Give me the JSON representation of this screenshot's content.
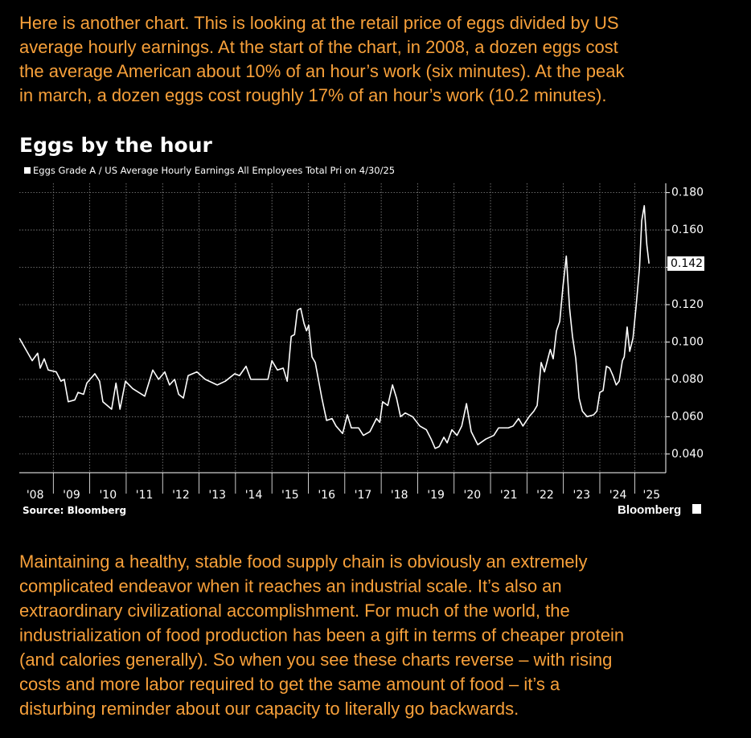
{
  "intro": [
    "Here is another chart. This is looking at the retail price of eggs divided by US",
    "average hourly earnings. At the start of the chart, in 2008, a dozen eggs cost",
    "the average American about 10% of an hour’s work (six minutes). At the peak",
    "in march, a dozen eggs cost roughly 17% of an hour’s work (10.2 minutes)."
  ],
  "chart_data": {
    "type": "line",
    "title": "Eggs by the hour",
    "source": "Source: Bloomberg",
    "brand": "Bloomberg",
    "last_label": "0.142",
    "x": [
      2008.07,
      2008.42,
      2008.57,
      2008.64,
      2008.75,
      2008.86,
      2009.08,
      2009.21,
      2009.3,
      2009.41,
      2009.59,
      2009.68,
      2009.83,
      2009.92,
      2010.14,
      2010.27,
      2010.36,
      2010.6,
      2010.72,
      2010.83,
      2010.98,
      2011.18,
      2011.51,
      2011.73,
      2011.89,
      2012.06,
      2012.19,
      2012.33,
      2012.44,
      2012.57,
      2012.7,
      2012.94,
      2013.17,
      2013.5,
      2013.72,
      2013.98,
      2014.11,
      2014.29,
      2014.42,
      2014.73,
      2014.89,
      2015.0,
      2015.15,
      2015.31,
      2015.42,
      2015.53,
      2015.62,
      2015.7,
      2015.79,
      2015.88,
      2015.95,
      2016.01,
      2016.1,
      2016.19,
      2016.37,
      2016.5,
      2016.65,
      2016.76,
      2016.94,
      2017.07,
      2017.18,
      2017.38,
      2017.51,
      2017.69,
      2017.87,
      2017.96,
      2018.04,
      2018.18,
      2018.31,
      2018.42,
      2018.53,
      2018.66,
      2018.86,
      2019.06,
      2019.24,
      2019.37,
      2019.48,
      2019.59,
      2019.72,
      2019.81,
      2019.94,
      2020.08,
      2020.21,
      2020.34,
      2020.47,
      2020.65,
      2020.87,
      2021.09,
      2021.22,
      2021.49,
      2021.62,
      2021.77,
      2021.89,
      2022.06,
      2022.19,
      2022.28,
      2022.39,
      2022.48,
      2022.64,
      2022.72,
      2022.81,
      2022.9,
      2022.99,
      2023.08,
      2023.17,
      2023.25,
      2023.34,
      2023.43,
      2023.52,
      2023.65,
      2023.83,
      2023.92,
      2024.0,
      2024.09,
      2024.18,
      2024.27,
      2024.36,
      2024.45,
      2024.53,
      2024.62,
      2024.67,
      2024.75,
      2024.82,
      2024.91,
      2025.0,
      2025.09,
      2025.15,
      2025.22,
      2025.29,
      2025.35
    ],
    "series": [
      {
        "name": "Eggs Grade A / US Average Hourly Earnings All Employees Total Pri on 4/30/25",
        "color": "#ffffff",
        "values": [
          0.102,
          0.09,
          0.094,
          0.086,
          0.091,
          0.085,
          0.084,
          0.079,
          0.08,
          0.068,
          0.069,
          0.073,
          0.072,
          0.078,
          0.083,
          0.079,
          0.068,
          0.064,
          0.078,
          0.064,
          0.079,
          0.075,
          0.071,
          0.085,
          0.08,
          0.084,
          0.077,
          0.08,
          0.072,
          0.07,
          0.082,
          0.084,
          0.08,
          0.077,
          0.079,
          0.083,
          0.082,
          0.087,
          0.08,
          0.08,
          0.08,
          0.09,
          0.085,
          0.086,
          0.079,
          0.103,
          0.104,
          0.117,
          0.118,
          0.11,
          0.106,
          0.109,
          0.092,
          0.089,
          0.07,
          0.058,
          0.059,
          0.055,
          0.051,
          0.061,
          0.054,
          0.054,
          0.05,
          0.052,
          0.059,
          0.057,
          0.068,
          0.066,
          0.077,
          0.07,
          0.06,
          0.062,
          0.06,
          0.055,
          0.053,
          0.048,
          0.043,
          0.044,
          0.049,
          0.046,
          0.053,
          0.05,
          0.055,
          0.067,
          0.052,
          0.045,
          0.048,
          0.05,
          0.054,
          0.054,
          0.055,
          0.059,
          0.055,
          0.06,
          0.063,
          0.066,
          0.089,
          0.084,
          0.096,
          0.091,
          0.106,
          0.111,
          0.13,
          0.146,
          0.118,
          0.103,
          0.091,
          0.07,
          0.063,
          0.06,
          0.061,
          0.063,
          0.073,
          0.074,
          0.087,
          0.086,
          0.082,
          0.077,
          0.079,
          0.09,
          0.092,
          0.108,
          0.095,
          0.102,
          0.12,
          0.14,
          0.165,
          0.173,
          0.152,
          0.142
        ]
      }
    ],
    "xlim": [
      2008.0,
      2025.81
    ],
    "xticks": [
      {
        "value": 2008.5,
        "label": "'08"
      },
      {
        "value": 2009.5,
        "label": "'09"
      },
      {
        "value": 2010.5,
        "label": "'10"
      },
      {
        "value": 2011.5,
        "label": "'11"
      },
      {
        "value": 2012.5,
        "label": "'12"
      },
      {
        "value": 2013.5,
        "label": "'13"
      },
      {
        "value": 2014.5,
        "label": "'14"
      },
      {
        "value": 2015.5,
        "label": "'15"
      },
      {
        "value": 2016.5,
        "label": "'16"
      },
      {
        "value": 2017.5,
        "label": "'17"
      },
      {
        "value": 2018.5,
        "label": "'18"
      },
      {
        "value": 2019.5,
        "label": "'19"
      },
      {
        "value": 2020.5,
        "label": "'20"
      },
      {
        "value": 2021.5,
        "label": "'21"
      },
      {
        "value": 2022.5,
        "label": "'22"
      },
      {
        "value": 2023.5,
        "label": "'23"
      },
      {
        "value": 2024.5,
        "label": "'24"
      },
      {
        "value": 2025.42,
        "label": "'25"
      }
    ],
    "ylim": [
      0.03,
      0.185
    ],
    "yticks": [
      {
        "value": 0.04,
        "label": "0.040"
      },
      {
        "value": 0.06,
        "label": "0.060"
      },
      {
        "value": 0.08,
        "label": "0.080"
      },
      {
        "value": 0.1,
        "label": "0.100"
      },
      {
        "value": 0.12,
        "label": "0.120"
      },
      {
        "value": 0.14,
        "label": "0.140"
      },
      {
        "value": 0.16,
        "label": "0.160"
      },
      {
        "value": 0.18,
        "label": "0.180"
      }
    ],
    "grid": true
  },
  "outro": [
    "Maintaining a healthy, stable food supply chain is obviously an extremely",
    "complicated endeavor when it reaches an industrial scale. It’s also an",
    "extraordinary civilizational accomplishment. For much of the world, the",
    "industrialization of food production has been a gift in terms of cheaper protein",
    "(and calories generally). So when you see these charts reverse – with rising",
    "costs and more labor required to get the same amount of food – it’s a",
    "disturbing reminder about our capacity to literally go backwards."
  ]
}
